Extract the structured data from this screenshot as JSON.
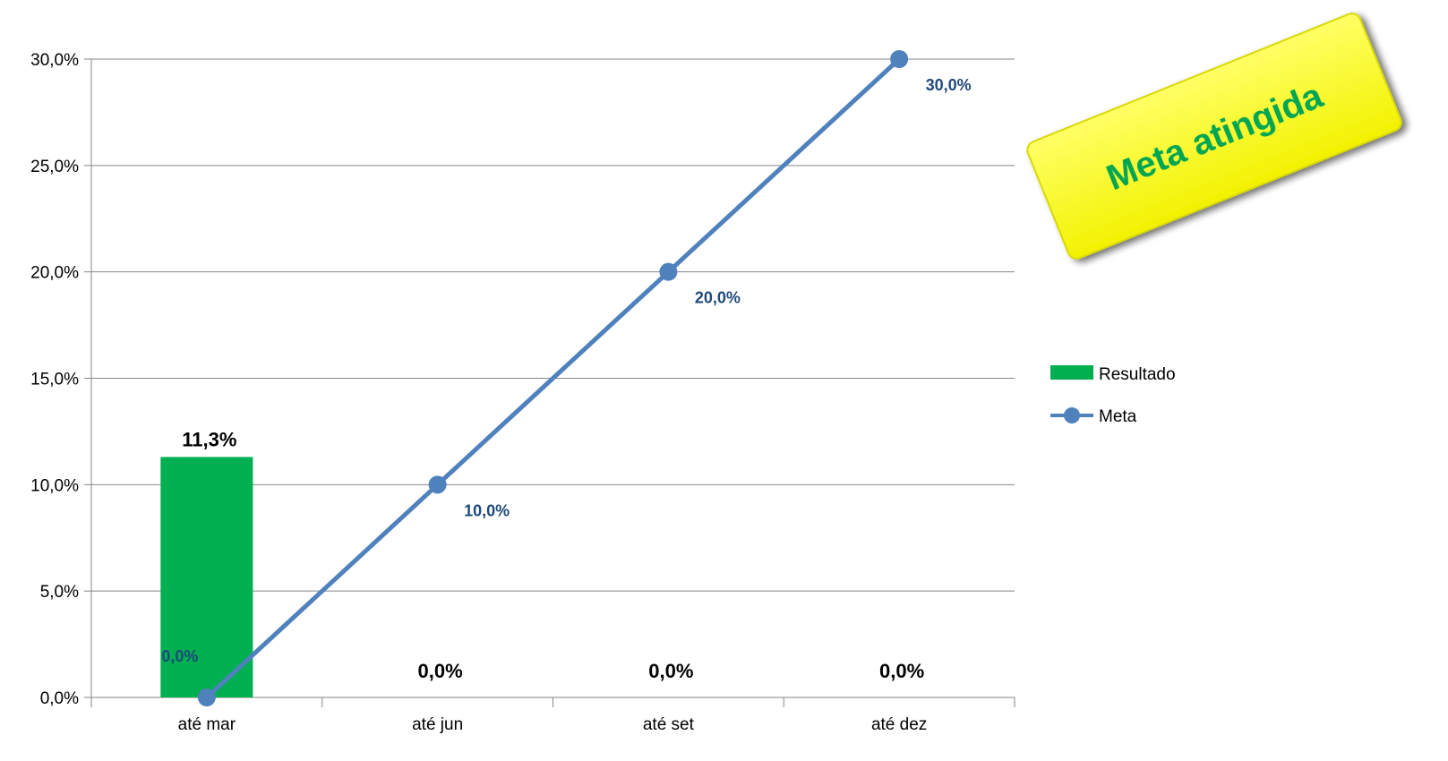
{
  "chart_data": {
    "type": "bar",
    "categories": [
      "até mar",
      "até jun",
      "até set",
      "até dez"
    ],
    "series": [
      {
        "name": "Resultado",
        "type": "bar",
        "color": "#00b050",
        "values": [
          11.3,
          0.0,
          0.0,
          0.0
        ],
        "labels": [
          "11,3%",
          "0,0%",
          "0,0%",
          "0,0%"
        ]
      },
      {
        "name": "Meta",
        "type": "line",
        "color": "#4f81bd",
        "values": [
          0.0,
          10.0,
          20.0,
          30.0
        ],
        "labels": [
          "0,0%",
          "10,0%",
          "20,0%",
          "30,0%"
        ]
      }
    ],
    "ylim": [
      0,
      30
    ],
    "yticks": [
      0,
      5,
      10,
      15,
      20,
      25,
      30
    ],
    "ytick_labels": [
      "0,0%",
      "5,0%",
      "10,0%",
      "15,0%",
      "20,0%",
      "25,0%",
      "30,0%"
    ],
    "grid": true,
    "legend_position": "right"
  },
  "annotation": {
    "text": "Meta atingida",
    "fill_color": "#ffff00",
    "text_color": "#00a651"
  }
}
